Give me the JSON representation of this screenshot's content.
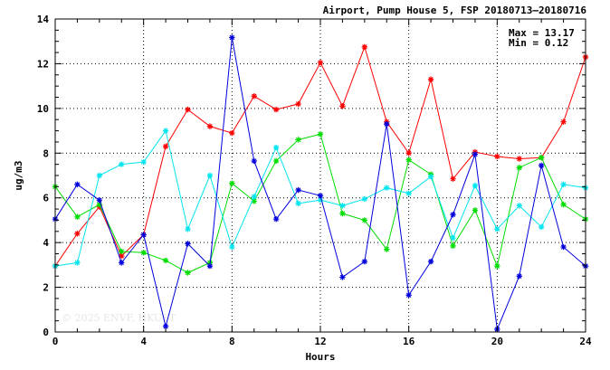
{
  "chart_data": {
    "type": "line",
    "title": "Airport, Pump House 5, FSP 20180713–20180716",
    "xlabel": "Hours",
    "ylabel": "ug/m3",
    "xlim": [
      0,
      24
    ],
    "ylim": [
      0,
      14
    ],
    "x_ticks": [
      0,
      4,
      8,
      12,
      16,
      20,
      24
    ],
    "y_ticks": [
      0,
      2,
      4,
      6,
      8,
      10,
      12,
      14
    ],
    "grid": true,
    "annotations": {
      "max": "Max = 13.17",
      "min": "Min =  0.12"
    },
    "watermark": "© 2025  ENVF, HKUST",
    "x": [
      0,
      1,
      2,
      3,
      4,
      5,
      6,
      7,
      8,
      9,
      10,
      11,
      12,
      13,
      14,
      15,
      16,
      17,
      18,
      19,
      20,
      21,
      22,
      23,
      24
    ],
    "series": [
      {
        "color": "#ff0000",
        "values": [
          2.95,
          4.4,
          5.6,
          3.4,
          4.35,
          8.3,
          9.95,
          9.2,
          8.9,
          10.55,
          9.95,
          10.2,
          12.05,
          10.1,
          12.75,
          9.4,
          8.0,
          11.3,
          6.85,
          8.05,
          7.85,
          7.75,
          7.8,
          9.4,
          12.3
        ]
      },
      {
        "color": "#00dd00",
        "values": [
          6.5,
          5.15,
          5.7,
          3.6,
          3.55,
          3.2,
          2.65,
          3.1,
          6.65,
          5.85,
          7.65,
          8.6,
          8.85,
          5.3,
          5.0,
          3.7,
          7.7,
          7.05,
          3.85,
          5.45,
          2.95,
          7.35,
          7.8,
          5.7,
          5.05
        ]
      },
      {
        "color": "#00e5ee",
        "values": [
          2.95,
          3.1,
          7.0,
          7.5,
          7.6,
          9.0,
          4.6,
          7.0,
          3.8,
          6.05,
          8.25,
          5.75,
          5.9,
          5.65,
          5.95,
          6.45,
          6.2,
          6.95,
          4.2,
          6.55,
          4.6,
          5.65,
          4.7,
          6.6,
          6.45
        ]
      },
      {
        "color": "#0000dd",
        "values": [
          5.05,
          6.6,
          5.9,
          3.1,
          4.35,
          0.25,
          3.95,
          2.95,
          13.17,
          7.65,
          5.05,
          6.35,
          6.1,
          2.45,
          3.15,
          9.3,
          1.65,
          3.15,
          5.25,
          7.95,
          0.12,
          2.5,
          7.45,
          3.8,
          2.95
        ]
      }
    ]
  }
}
